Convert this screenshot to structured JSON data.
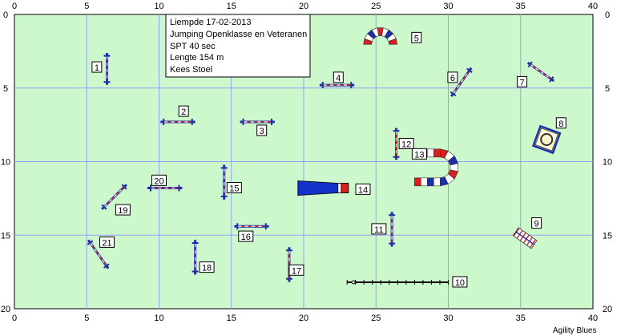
{
  "info": {
    "lines": [
      "Liempde 17-02-2013",
      "Jumping Openklasse en Veteranen",
      "SPT 40 sec",
      "Lengte 154 m",
      "Kees Stoel"
    ]
  },
  "footer": "Agility Blues",
  "field": {
    "x_range": [
      0,
      40
    ],
    "y_range": [
      0,
      20
    ],
    "background": "#ccf8cc",
    "grid_color": "#9c9cff"
  },
  "x_ticks": [
    "0",
    "5",
    "10",
    "15",
    "20",
    "25",
    "30",
    "35",
    "40"
  ],
  "y_ticks": [
    "0",
    "5",
    "10",
    "15",
    "20"
  ],
  "colors": {
    "pole_blue": "#1e2ea8",
    "stripe_red": "#d42020",
    "tunnel_blue": "#1232c8"
  },
  "obstacles": [
    {
      "num": "1",
      "type": "jump",
      "x": 6.4,
      "y": 3.7,
      "angle": 90,
      "len": 2.2,
      "lx": 5.7,
      "ly": 3.6
    },
    {
      "num": "2",
      "type": "jump",
      "x": 11.3,
      "y": 7.3,
      "angle": 0,
      "len": 2.4,
      "lx": 11.7,
      "ly": 6.6
    },
    {
      "num": "3",
      "type": "jump",
      "x": 16.8,
      "y": 7.3,
      "angle": 0,
      "len": 2.4,
      "lx": 17.1,
      "ly": 7.9
    },
    {
      "num": "4",
      "type": "jump",
      "x": 22.3,
      "y": 4.8,
      "angle": 0,
      "len": 2.4,
      "lx": 22.4,
      "ly": 4.3
    },
    {
      "num": "5",
      "type": "tunnel-arc",
      "x": 25.3,
      "y": 1.6,
      "angle": 0,
      "lx": 27.8,
      "ly": 1.6
    },
    {
      "num": "6",
      "type": "jump",
      "x": 30.9,
      "y": 4.6,
      "angle": -55,
      "len": 2.4,
      "lx": 30.3,
      "ly": 4.3
    },
    {
      "num": "7",
      "type": "jump",
      "x": 36.4,
      "y": 3.9,
      "angle": 35,
      "len": 2.2,
      "lx": 35.1,
      "ly": 4.6
    },
    {
      "num": "8",
      "type": "tyre",
      "x": 36.8,
      "y": 8.5,
      "angle": 0,
      "lx": 37.8,
      "ly": 7.4
    },
    {
      "num": "9",
      "type": "wall",
      "x": 35.3,
      "y": 15.2,
      "angle": 35,
      "lx": 36.1,
      "ly": 14.2
    },
    {
      "num": "10",
      "type": "walk",
      "x": 23.0,
      "y": 18.2,
      "angle": 0,
      "len": 7.0,
      "lx": 30.8,
      "ly": 18.2
    },
    {
      "num": "11",
      "type": "jump",
      "x": 26.1,
      "y": 14.6,
      "angle": 90,
      "len": 2.4,
      "lx": 25.2,
      "ly": 14.6
    },
    {
      "num": "12",
      "type": "jump",
      "x": 26.4,
      "y": 8.8,
      "angle": 90,
      "len": 2.2,
      "lx": 27.1,
      "ly": 8.8
    },
    {
      "num": "13",
      "type": "tunnel-u",
      "x": 30.1,
      "y": 10.4,
      "angle": 0,
      "lx": 28.0,
      "ly": 9.5
    },
    {
      "num": "14",
      "type": "chute",
      "x": 19.6,
      "y": 11.8,
      "angle": 0,
      "lx": 24.1,
      "ly": 11.9
    },
    {
      "num": "15",
      "type": "jump",
      "x": 14.5,
      "y": 11.4,
      "angle": 90,
      "len": 2.4,
      "lx": 15.2,
      "ly": 11.8
    },
    {
      "num": "16",
      "type": "jump",
      "x": 16.4,
      "y": 14.4,
      "angle": 0,
      "len": 2.4,
      "lx": 16.0,
      "ly": 15.1
    },
    {
      "num": "17",
      "type": "jump",
      "x": 19.0,
      "y": 17.0,
      "angle": 90,
      "len": 2.4,
      "lx": 19.5,
      "ly": 17.4
    },
    {
      "num": "18",
      "type": "jump",
      "x": 12.5,
      "y": 16.5,
      "angle": 90,
      "len": 2.4,
      "lx": 13.3,
      "ly": 17.2
    },
    {
      "num": "19",
      "type": "jump",
      "x": 6.9,
      "y": 12.4,
      "angle": -45,
      "len": 2.4,
      "lx": 7.5,
      "ly": 13.3
    },
    {
      "num": "20",
      "type": "jump",
      "x": 10.4,
      "y": 11.8,
      "angle": 0,
      "len": 2.4,
      "lx": 10.0,
      "ly": 11.3
    },
    {
      "num": "21",
      "type": "jump",
      "x": 5.8,
      "y": 16.3,
      "angle": 55,
      "len": 2.4,
      "lx": 6.4,
      "ly": 15.5
    }
  ]
}
